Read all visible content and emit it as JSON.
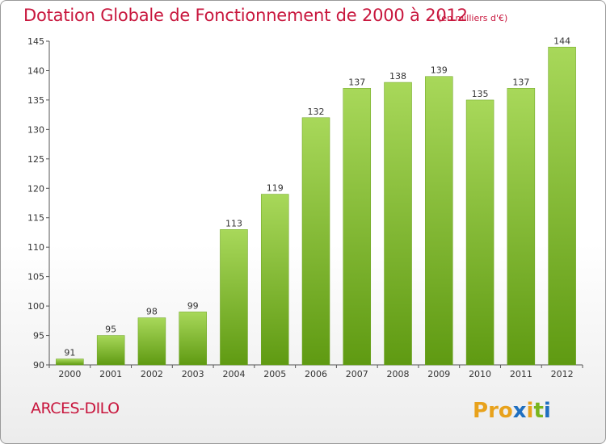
{
  "header": {
    "title": "Dotation Globale de Fonctionnement de 2000 à 2012",
    "unit_note": "(en milliers d'€)"
  },
  "footer": {
    "commune": "ARCES-DILO",
    "logo_text": "Proxiti"
  },
  "colors": {
    "title": "#c8163d",
    "bar_light": "#a8d85a",
    "bar_dark": "#5f9a12",
    "logo_letters": [
      "#e8a21c",
      "#e8a21c",
      "#e8a21c",
      "#1f6fc0",
      "#e8a21c",
      "#7ab51d",
      "#1f6fc0"
    ]
  },
  "chart_data": {
    "type": "bar",
    "title": "Dotation Globale de Fonctionnement de 2000 à 2012",
    "subtitle": "(en milliers d'€)",
    "categories": [
      "2000",
      "2001",
      "2002",
      "2003",
      "2004",
      "2005",
      "2006",
      "2007",
      "2008",
      "2009",
      "2010",
      "2011",
      "2012"
    ],
    "values": [
      91,
      95,
      98,
      99,
      113,
      119,
      132,
      137,
      138,
      139,
      135,
      137,
      144
    ],
    "data_labels": [
      "91",
      "95",
      "98",
      "99",
      "113",
      "119",
      "132",
      "137",
      "138",
      "139",
      "135",
      "137",
      "144"
    ],
    "y_ticks": [
      90,
      95,
      100,
      105,
      110,
      115,
      120,
      125,
      130,
      135,
      140,
      145
    ],
    "y_tick_labels": [
      "90",
      "95",
      "100",
      "105",
      "110",
      "115",
      "120",
      "125",
      "130",
      "135",
      "140",
      "145"
    ],
    "ylim": [
      90,
      145
    ],
    "xlabel": "",
    "ylabel": "",
    "grid": false,
    "legend": "none"
  }
}
